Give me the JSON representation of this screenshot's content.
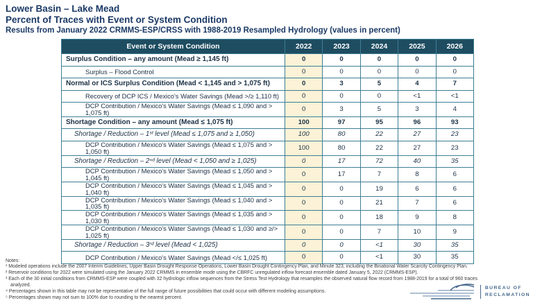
{
  "titles": {
    "line1": "Lower Basin – Lake Mead",
    "line2": "Percent of Traces with Event or System Condition",
    "line3": "Results from January 2022 CRMMS-ESP/CRSS with 1988-2019 Resampled Hydrology (values in percent)"
  },
  "table": {
    "header": [
      "Event or System Condition",
      "2022",
      "2023",
      "2024",
      "2025",
      "2026"
    ],
    "rows": [
      {
        "label": "Surplus Condition – any amount  (Mead ≥ 1,145 ft)",
        "style": "main",
        "values": [
          "0",
          "0",
          "0",
          "0",
          "0"
        ]
      },
      {
        "label": "Surplus – Flood Control",
        "style": "sub",
        "values": [
          "0",
          "0",
          "0",
          "0",
          "0"
        ]
      },
      {
        "label": "Normal or ICS Surplus Condition (Mead < 1,145 and > 1,075 ft)",
        "style": "main",
        "values": [
          "0",
          "3",
          "5",
          "4",
          "7"
        ]
      },
      {
        "label": "Recovery of DCP ICS / Mexico's Water Savings (Mead >/≥ 1,110 ft)",
        "style": "sub",
        "values": [
          "0",
          "0",
          "0",
          "<1",
          "<1"
        ]
      },
      {
        "label": "DCP Contribution / Mexico's Water Savings (Mead ≤ 1,090 and > 1,075 ft)",
        "style": "sub",
        "values": [
          "0",
          "3",
          "5",
          "3",
          "4"
        ]
      },
      {
        "label": "Shortage Condition – any amount  (Mead ≤ 1,075 ft)",
        "style": "main",
        "values": [
          "100",
          "97",
          "95",
          "96",
          "93"
        ]
      },
      {
        "label": "Shortage / Reduction – 1ˢᵗ level (Mead ≤ 1,075 and ≥ 1,050)",
        "style": "level",
        "values": [
          "100",
          "80",
          "22",
          "27",
          "23"
        ]
      },
      {
        "label": "DCP Contribution / Mexico's Water Savings (Mead ≤ 1,075 and > 1,050 ft)",
        "style": "sub",
        "values": [
          "100",
          "80",
          "22",
          "27",
          "23"
        ]
      },
      {
        "label": "Shortage / Reduction – 2ⁿᵈ level (Mead < 1,050 and ≥ 1,025)",
        "style": "level",
        "values": [
          "0",
          "17",
          "72",
          "40",
          "35"
        ]
      },
      {
        "label": "DCP Contribution / Mexico's Water Savings (Mead ≤ 1,050 and > 1,045 ft)",
        "style": "sub",
        "values": [
          "0",
          "17",
          "7",
          "8",
          "6"
        ]
      },
      {
        "label": "DCP Contribution / Mexico's Water Savings (Mead ≤ 1,045 and > 1,040 ft)",
        "style": "sub",
        "values": [
          "0",
          "0",
          "19",
          "6",
          "6"
        ]
      },
      {
        "label": "DCP Contribution / Mexico's Water Savings (Mead ≤ 1,040 and > 1,035 ft)",
        "style": "sub",
        "values": [
          "0",
          "0",
          "21",
          "7",
          "6"
        ]
      },
      {
        "label": "DCP Contribution / Mexico's Water Savings (Mead ≤ 1,035 and > 1,030 ft)",
        "style": "sub",
        "values": [
          "0",
          "0",
          "18",
          "9",
          "8"
        ]
      },
      {
        "label": "DCP Contribution / Mexico's Water Savings (Mead ≤ 1,030 and ≥/> 1,025 ft)",
        "style": "sub",
        "values": [
          "0",
          "0",
          "7",
          "10",
          "9"
        ]
      },
      {
        "label": "Shortage / Reduction – 3ʳᵈ level (Mead < 1,025)",
        "style": "level",
        "values": [
          "0",
          "0",
          "<1",
          "30",
          "35"
        ]
      },
      {
        "label": "DCP Contribution / Mexico's Water Savings (Mead </≤ 1,025 ft)",
        "style": "sub",
        "values": [
          "0",
          "0",
          "<1",
          "30",
          "35"
        ]
      }
    ]
  },
  "notes": {
    "heading": "Notes:",
    "items": [
      "¹ Modeled operations include the 2007 Interim Guidelines, Upper Basin Drought Response Operations, Lower Basin Drought Contingency Plan, and Minute 323, including the Binational Water Scarcity Contingency Plan.",
      "² Reservoir conditions for 2022 were simulated using the January 2022 CRMMS in ensemble mode using the CBRFC unregulated inflow forecast ensemble dated January 5, 2022 (CRMMS-ESP).",
      "³ Each of the 30 initial conditions from CRMMS-ESP were coupled with 32 hydrologic inflow sequences from the Stress Test Hydrology that resamples the observed natural flow record from 1988-2019 for a total of 960 traces analyzed.",
      "⁴ Percentages shown in this table may not be representative of the full range of future possibilities that could occur with different modeling assumptions.",
      "⁵ Percentages shown may not sum to 100% due to rounding to the nearest percent."
    ]
  },
  "logo": {
    "line1": "BUREAU OF",
    "line2": "RECLAMATION"
  },
  "colors": {
    "title_text": "#1B3A66",
    "header_bg": "#1E4D61",
    "table_border": "#3E7E95",
    "highlight_2022_col": "#FBF2D7",
    "logo_blue": "#46688C"
  }
}
